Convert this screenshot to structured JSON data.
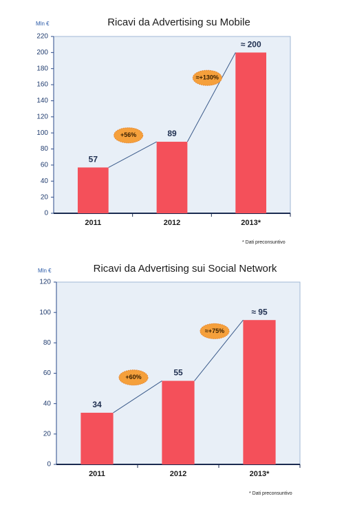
{
  "chart_data": [
    {
      "type": "bar",
      "title": "Ricavi da Advertising su Mobile",
      "y_label": "Mln €",
      "categories": [
        "2011",
        "2012",
        "2013*"
      ],
      "values": [
        57,
        89,
        200
      ],
      "value_labels": [
        "57",
        "89",
        "≈ 200"
      ],
      "color": "#f4505a",
      "ylim": [
        0,
        220
      ],
      "yticks": [
        0,
        20,
        40,
        60,
        80,
        100,
        120,
        140,
        160,
        180,
        200,
        220
      ],
      "annotations": [
        "+56%",
        "≈+130%"
      ],
      "footnote": "* Dati preconsuntivo"
    },
    {
      "type": "bar",
      "title": "Ricavi da Advertising sui Social Network",
      "y_label": "Mln €",
      "categories": [
        "2011",
        "2012",
        "2013*"
      ],
      "values": [
        34,
        55,
        95
      ],
      "value_labels": [
        "34",
        "55",
        "≈ 95"
      ],
      "color": "#f4505a",
      "ylim": [
        0,
        120
      ],
      "yticks": [
        0,
        20,
        40,
        60,
        80,
        100,
        120
      ],
      "annotations": [
        "+60%",
        "≈+75%"
      ],
      "footnote": "* Dati preconsuntivo"
    }
  ]
}
